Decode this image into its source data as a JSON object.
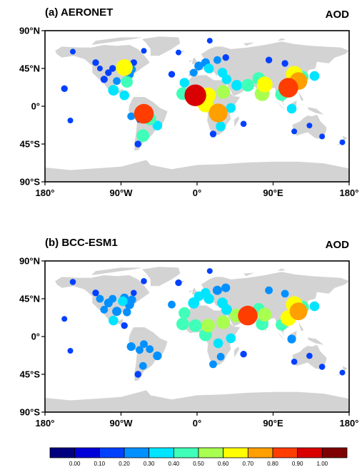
{
  "panels": [
    {
      "label": "(a) AERONET",
      "variable": "AOD"
    },
    {
      "label": "(b) BCC-ESM1",
      "variable": "AOD"
    }
  ],
  "axes": {
    "lat_labels": [
      "90°N",
      "45°N",
      "0°",
      "45°S",
      "90°S"
    ],
    "lat_values": [
      90,
      45,
      0,
      -45,
      -90
    ],
    "lon_labels": [
      "180°",
      "90°W",
      "0°",
      "90°E",
      "180°"
    ],
    "lon_values": [
      -180,
      -90,
      0,
      90,
      180
    ]
  },
  "colorbar": {
    "labels": [
      "0.00",
      "0.10",
      "0.20",
      "0.30",
      "0.40",
      "0.50",
      "0.60",
      "0.70",
      "0.80",
      "0.90",
      "1.00"
    ],
    "colors": [
      "#00007f",
      "#0000d8",
      "#0040ff",
      "#0090ff",
      "#00e5ff",
      "#40ffb8",
      "#a8ff50",
      "#ffff00",
      "#ff9f00",
      "#ff3d00",
      "#d80000",
      "#7f0000"
    ]
  },
  "colors": {
    "land": "#d3d3d3",
    "ocean": "#ffffff",
    "frame": "#000000"
  },
  "stations": [
    {
      "lon": -157,
      "lat": 21,
      "a": 0.15,
      "b": 0.1
    },
    {
      "lon": -147,
      "lat": 65,
      "a": 0.1,
      "b": 0.12
    },
    {
      "lon": -120,
      "lat": 52,
      "a": 0.15,
      "b": 0.15
    },
    {
      "lon": -115,
      "lat": 45,
      "a": 0.1,
      "b": 0.2
    },
    {
      "lon": -110,
      "lat": 32,
      "a": 0.18,
      "b": 0.2
    },
    {
      "lon": -105,
      "lat": 40,
      "a": 0.15,
      "b": 0.25
    },
    {
      "lon": -100,
      "lat": 45,
      "a": 0.15,
      "b": 0.2
    },
    {
      "lon": -95,
      "lat": 30,
      "a": 0.2,
      "b": 0.28
    },
    {
      "lon": -88,
      "lat": 42,
      "a": 0.2,
      "b": 0.3
    },
    {
      "lon": -80,
      "lat": 38,
      "a": 0.25,
      "b": 0.28
    },
    {
      "lon": -77,
      "lat": 44,
      "a": 0.2,
      "b": 0.22
    },
    {
      "lon": -75,
      "lat": 52,
      "a": 0.15,
      "b": 0.12
    },
    {
      "lon": -99,
      "lat": 19,
      "a": 0.35,
      "b": 0.3
    },
    {
      "lon": -86,
      "lat": 13,
      "a": 0.3,
      "b": 0.15
    },
    {
      "lon": -78,
      "lat": -12,
      "a": 0.2,
      "b": 0.25
    },
    {
      "lon": -68,
      "lat": -16,
      "a": 0.15,
      "b": 0.2
    },
    {
      "lon": -63,
      "lat": -9,
      "a": 0.8,
      "b": 0.2
    },
    {
      "lon": -56,
      "lat": -15,
      "a": 0.45,
      "b": 0.2
    },
    {
      "lon": -47,
      "lat": -23,
      "a": 0.3,
      "b": 0.25
    },
    {
      "lon": -64,
      "lat": -35,
      "a": 0.45,
      "b": 0.2
    },
    {
      "lon": -70,
      "lat": -45,
      "a": 0.15,
      "b": 0.15
    },
    {
      "lon": -86,
      "lat": 46,
      "a": 0.65,
      "b": 0.25
    },
    {
      "lon": -83,
      "lat": 29,
      "a": 0.4,
      "b": 0.22
    },
    {
      "lon": -22,
      "lat": 64,
      "a": 0.1,
      "b": 0.15
    },
    {
      "lon": -15,
      "lat": 28,
      "a": 0.3,
      "b": 0.4
    },
    {
      "lon": -4,
      "lat": 40,
      "a": 0.2,
      "b": 0.38
    },
    {
      "lon": 2,
      "lat": 48,
      "a": 0.25,
      "b": 0.3
    },
    {
      "lon": 10,
      "lat": 52,
      "a": 0.25,
      "b": 0.3
    },
    {
      "lon": 14,
      "lat": 45,
      "a": 0.3,
      "b": 0.33
    },
    {
      "lon": 24,
      "lat": 55,
      "a": 0.2,
      "b": 0.28
    },
    {
      "lon": 34,
      "lat": 58,
      "a": 0.15,
      "b": 0.25
    },
    {
      "lon": 30,
      "lat": 40,
      "a": 0.3,
      "b": 0.35
    },
    {
      "lon": 35,
      "lat": 32,
      "a": 0.3,
      "b": 0.35
    },
    {
      "lon": 47,
      "lat": 25,
      "a": 0.35,
      "b": 0.5
    },
    {
      "lon": -17,
      "lat": 15,
      "a": 0.45,
      "b": 0.45
    },
    {
      "lon": -2,
      "lat": 13,
      "a": 0.9,
      "b": 0.45
    },
    {
      "lon": 13,
      "lat": 13,
      "a": 0.6,
      "b": 0.5
    },
    {
      "lon": 31,
      "lat": 17,
      "a": 0.5,
      "b": 0.5
    },
    {
      "lon": 10,
      "lat": 2,
      "a": 0.6,
      "b": 0.45
    },
    {
      "lon": 25,
      "lat": -8,
      "a": 0.75,
      "b": 0.3
    },
    {
      "lon": 28,
      "lat": -24,
      "a": 0.3,
      "b": 0.2
    },
    {
      "lon": 19,
      "lat": -33,
      "a": 0.15,
      "b": 0.2
    },
    {
      "lon": 40,
      "lat": -2,
      "a": 0.3,
      "b": 0.3
    },
    {
      "lon": 60,
      "lat": 25,
      "a": 0.45,
      "b": 0.8
    },
    {
      "lon": 77,
      "lat": 15,
      "a": 0.55,
      "b": 0.45
    },
    {
      "lon": 80,
      "lat": 26,
      "a": 0.6,
      "b": 0.5
    },
    {
      "lon": 73,
      "lat": 33,
      "a": 0.45,
      "b": 0.4
    },
    {
      "lon": 85,
      "lat": 55,
      "a": 0.15,
      "b": 0.2
    },
    {
      "lon": 104,
      "lat": 51,
      "a": 0.15,
      "b": 0.2
    },
    {
      "lon": 115,
      "lat": 38,
      "a": 0.65,
      "b": 0.65
    },
    {
      "lon": 120,
      "lat": 30,
      "a": 0.7,
      "b": 0.7
    },
    {
      "lon": 108,
      "lat": 22,
      "a": 0.8,
      "b": 0.6
    },
    {
      "lon": 100,
      "lat": 14,
      "a": 0.45,
      "b": 0.4
    },
    {
      "lon": 125,
      "lat": 35,
      "a": 0.4,
      "b": 0.45
    },
    {
      "lon": 139,
      "lat": 36,
      "a": 0.3,
      "b": 0.3
    },
    {
      "lon": 112,
      "lat": -3,
      "a": 0.3,
      "b": 0.25
    },
    {
      "lon": 115,
      "lat": -30,
      "a": 0.1,
      "b": 0.12
    },
    {
      "lon": 133,
      "lat": -23,
      "a": 0.1,
      "b": 0.12
    },
    {
      "lon": 148,
      "lat": -36,
      "a": 0.1,
      "b": 0.12
    },
    {
      "lon": 172,
      "lat": -43,
      "a": 0.1,
      "b": 0.1
    },
    {
      "lon": -150,
      "lat": -17,
      "a": 0.1,
      "b": 0.1
    },
    {
      "lon": -63,
      "lat": 66,
      "a": 0.1,
      "b": 0.12
    },
    {
      "lon": 15,
      "lat": 78,
      "a": 0.1,
      "b": 0.1
    },
    {
      "lon": 55,
      "lat": -21,
      "a": 0.12,
      "b": 0.15
    },
    {
      "lon": -30,
      "lat": 38,
      "a": 0.15,
      "b": 0.2
    }
  ]
}
